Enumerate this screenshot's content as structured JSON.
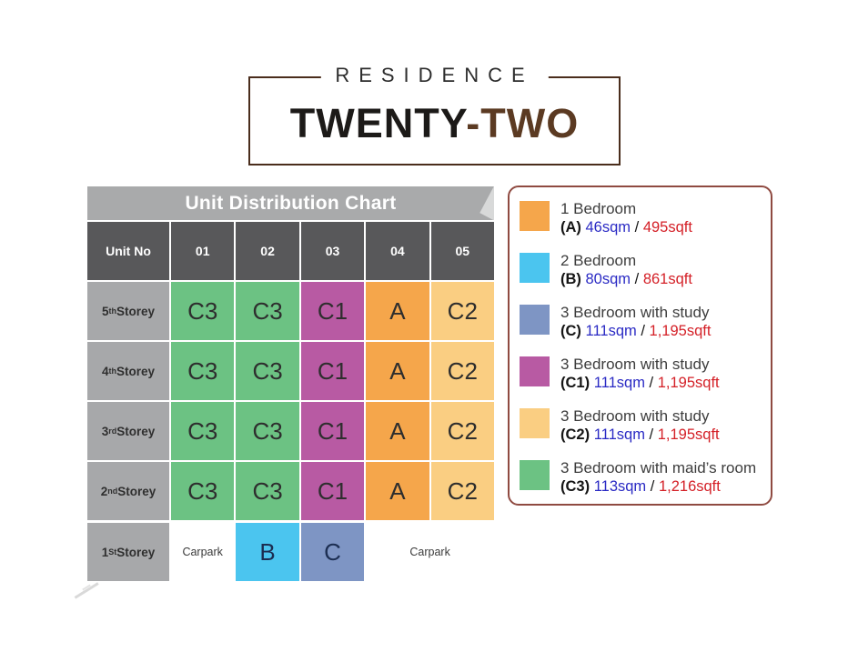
{
  "logo": {
    "residence": "RESIDENCE",
    "name_black": "TWENTY",
    "name_brown": "-TWO"
  },
  "table": {
    "title": "Unit Distribution Chart",
    "header": {
      "unit_no": "Unit No",
      "units": [
        "01",
        "02",
        "03",
        "04",
        "05"
      ]
    },
    "rows": [
      {
        "storey_num": "5",
        "storey_sup": "th",
        "storey_word": " Storey",
        "cells": [
          {
            "text": "C3",
            "type": "C3"
          },
          {
            "text": "C3",
            "type": "C3"
          },
          {
            "text": "C1",
            "type": "C1"
          },
          {
            "text": "A",
            "type": "A"
          },
          {
            "text": "C2",
            "type": "C2"
          }
        ]
      },
      {
        "storey_num": "4",
        "storey_sup": "th",
        "storey_word": " Storey",
        "cells": [
          {
            "text": "C3",
            "type": "C3"
          },
          {
            "text": "C3",
            "type": "C3"
          },
          {
            "text": "C1",
            "type": "C1"
          },
          {
            "text": "A",
            "type": "A"
          },
          {
            "text": "C2",
            "type": "C2"
          }
        ]
      },
      {
        "storey_num": "3",
        "storey_sup": "rd",
        "storey_word": " Storey",
        "cells": [
          {
            "text": "C3",
            "type": "C3"
          },
          {
            "text": "C3",
            "type": "C3"
          },
          {
            "text": "C1",
            "type": "C1"
          },
          {
            "text": "A",
            "type": "A"
          },
          {
            "text": "C2",
            "type": "C2"
          }
        ]
      },
      {
        "storey_num": "2",
        "storey_sup": "nd",
        "storey_word": " Storey",
        "cells": [
          {
            "text": "C3",
            "type": "C3"
          },
          {
            "text": "C3",
            "type": "C3"
          },
          {
            "text": "C1",
            "type": "C1"
          },
          {
            "text": "A",
            "type": "A"
          },
          {
            "text": "C2",
            "type": "C2"
          }
        ]
      },
      {
        "storey_num": "1",
        "storey_sup": "St",
        "storey_word": " Storey",
        "cells": [
          {
            "text": "Carpark",
            "type": "carpark"
          },
          {
            "text": "B",
            "type": "B"
          },
          {
            "text": "C",
            "type": "C"
          },
          {
            "text": "Carpark",
            "type": "carpark"
          }
        ]
      }
    ]
  },
  "legend": {
    "items": [
      {
        "type": "A",
        "line1": "1 Bedroom",
        "code": "(A)",
        "sqm": "46sqm",
        "sep": "/",
        "sqft": "495sqft"
      },
      {
        "type": "B",
        "line1": "2 Bedroom",
        "code": "(B)",
        "sqm": "80sqm",
        "sep": "/",
        "sqft": "861sqft"
      },
      {
        "type": "C",
        "line1": "3 Bedroom with study",
        "code": "(C)",
        "sqm": "111sqm",
        "sep": "/",
        "sqft": "1,195sqft"
      },
      {
        "type": "C1",
        "line1": "3 Bedroom with study",
        "code": "(C1)",
        "sqm": "111sqm",
        "sep": "/",
        "sqft": "1,195sqft"
      },
      {
        "type": "C2",
        "line1": "3 Bedroom with study",
        "code": "(C2)",
        "sqm": "111sqm",
        "sep": "/",
        "sqft": "1,195sqft"
      },
      {
        "type": "C3",
        "line1": "3 Bedroom with maid’s room",
        "code": "(C3)",
        "sqm": "113sqm",
        "sep": "/",
        "sqft": "1,216sqft"
      }
    ]
  },
  "colors": {
    "A": "#F5A64B",
    "B": "#4BC5EF",
    "C": "#7E95C4",
    "C1": "#B85AA3",
    "C2": "#FACE82",
    "C3": "#6CC283",
    "carpark": "#FFFFFF",
    "titlebar_bg": "#A9AAAB",
    "header_bg": "#58585A",
    "storey_bg": "#A7A8AA",
    "legend_border": "#8F4A41",
    "logo_border": "#4A2D1C",
    "logo_brown": "#5B3A22",
    "sqm_text": "#2A2AC4",
    "sqft_text": "#D42027"
  }
}
